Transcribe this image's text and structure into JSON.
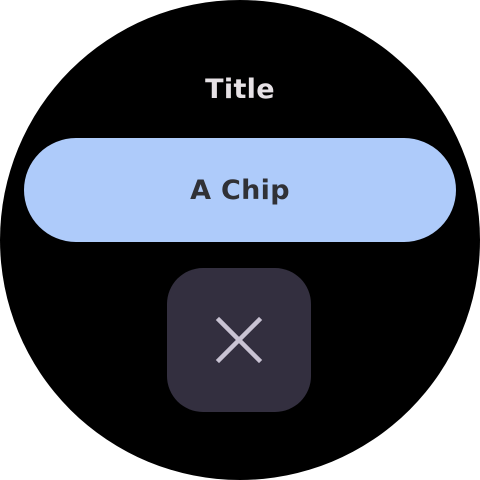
{
  "screen": {
    "title": "Title",
    "chip": {
      "label": "A Chip"
    },
    "close_button": {
      "icon": "close-icon"
    }
  },
  "colors": {
    "background": "#000000",
    "title_text": "#e6e1e5",
    "chip_background": "#aecbfa",
    "chip_text": "#303136",
    "button_background": "#332f3f",
    "icon_color": "#c9c3d3"
  }
}
